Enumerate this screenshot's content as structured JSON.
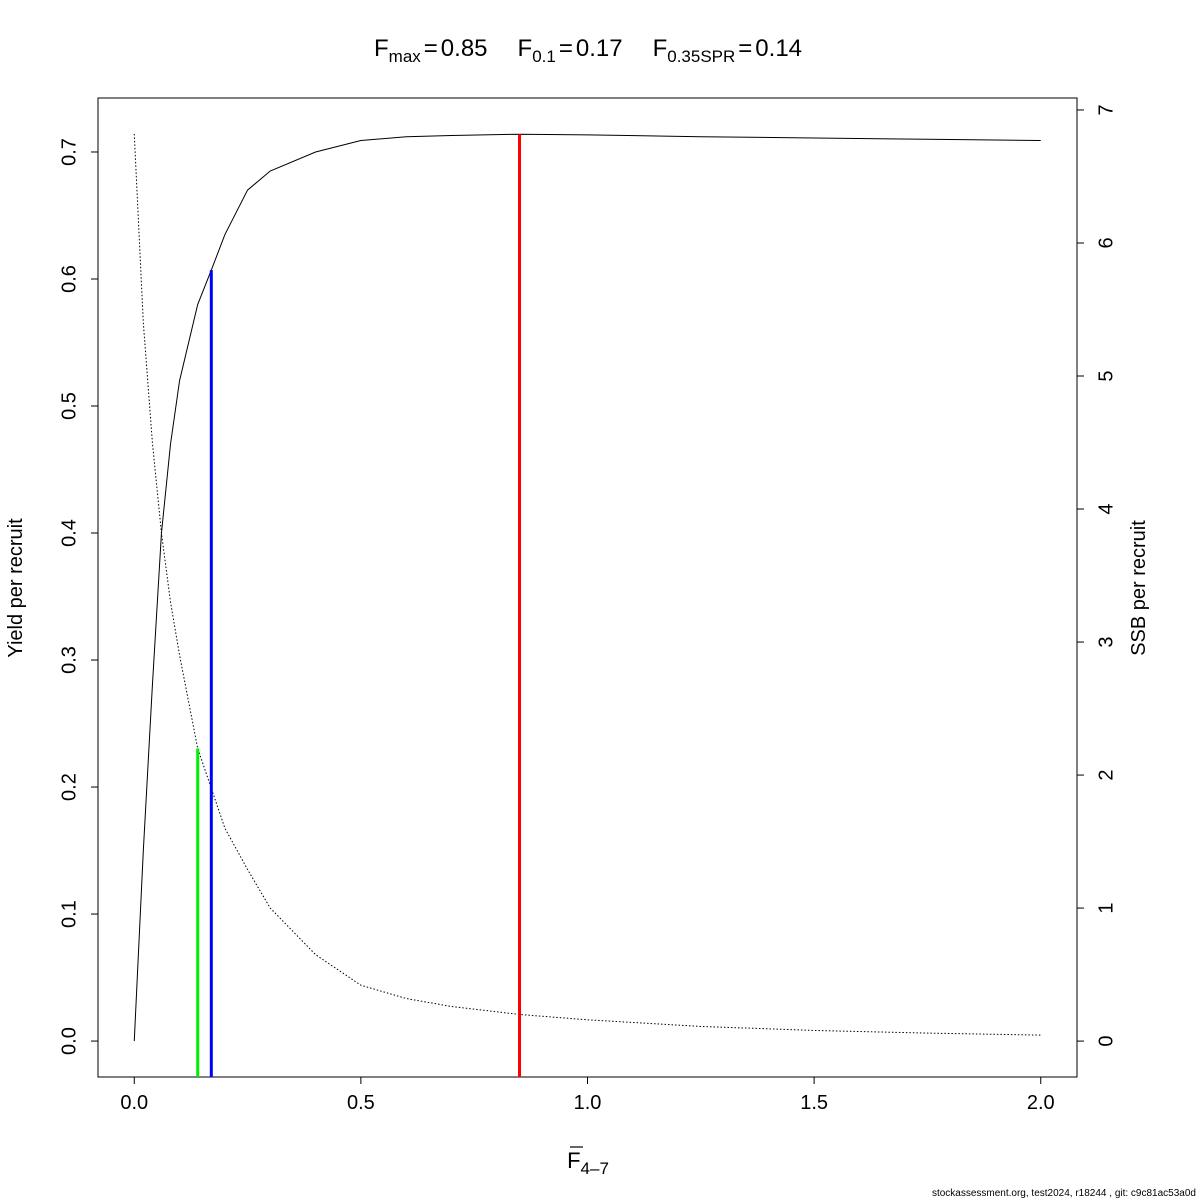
{
  "chart_data": {
    "type": "line",
    "title_parts": [
      {
        "symbol": "F",
        "subscript": "max",
        "equals": "=",
        "x": 0.85,
        "y": 0.714,
        "color": "#ff0000"
      },
      {
        "symbol": "F",
        "subscript": "0.1",
        "equals": "=",
        "x": 0.17,
        "y": 0.607,
        "color": "#0000ff"
      },
      {
        "symbol": "F",
        "subscript": "0.35SPR",
        "equals": "=",
        "x": 0.14,
        "y": 2.2,
        "axis": "y2",
        "color": "#00ee00"
      }
    ],
    "x_label": {
      "symbol": "F",
      "subscript": "4–7"
    },
    "y_label": "Yield per recruit",
    "y2_label": "SSB per recruit",
    "x": [
      0,
      0.02,
      0.04,
      0.06,
      0.08,
      0.1,
      0.14,
      0.17,
      0.2,
      0.25,
      0.3,
      0.4,
      0.5,
      0.6,
      0.7,
      0.85,
      1.0,
      1.25,
      1.5,
      1.75,
      2.0
    ],
    "series": [
      {
        "name": "Yield per recruit",
        "color": "#000000",
        "dash": "solid",
        "values": [
          0,
          0.15,
          0.28,
          0.4,
          0.47,
          0.52,
          0.58,
          0.607,
          0.635,
          0.67,
          0.685,
          0.7,
          0.709,
          0.712,
          0.713,
          0.714,
          0.7135,
          0.712,
          0.711,
          0.71,
          0.709
        ]
      },
      {
        "name": "SSB per recruit",
        "color": "#000000",
        "dash": "dotted",
        "axis": "y2",
        "values": [
          6.82,
          5.4,
          4.5,
          3.82,
          3.3,
          2.9,
          2.2,
          1.9,
          1.6,
          1.29,
          1.0,
          0.65,
          0.42,
          0.32,
          0.26,
          0.2,
          0.16,
          0.11,
          0.08,
          0.06,
          0.045
        ]
      }
    ],
    "xlim": [
      -0.08,
      2.08
    ],
    "xticks": [
      {
        "value": 0,
        "label": "0.0"
      },
      {
        "value": 0.5,
        "label": "0.5"
      },
      {
        "value": 1,
        "label": "1.0"
      },
      {
        "value": 1.5,
        "label": "1.5"
      },
      {
        "value": 2,
        "label": "2.0"
      }
    ],
    "ylim": [
      -0.0283,
      0.7425
    ],
    "yticks": [
      {
        "value": 0,
        "label": "0.0"
      },
      0.1,
      0.2,
      0.3,
      0.4,
      0.5,
      0.6,
      0.7
    ],
    "y2lim": [
      -0.27,
      7.09
    ],
    "y2ticks": [
      0,
      1,
      2,
      3,
      4,
      5,
      6,
      7
    ],
    "footer": "stockassessment.org, test2024, r18244 , git: c9c81ac53a0d"
  }
}
